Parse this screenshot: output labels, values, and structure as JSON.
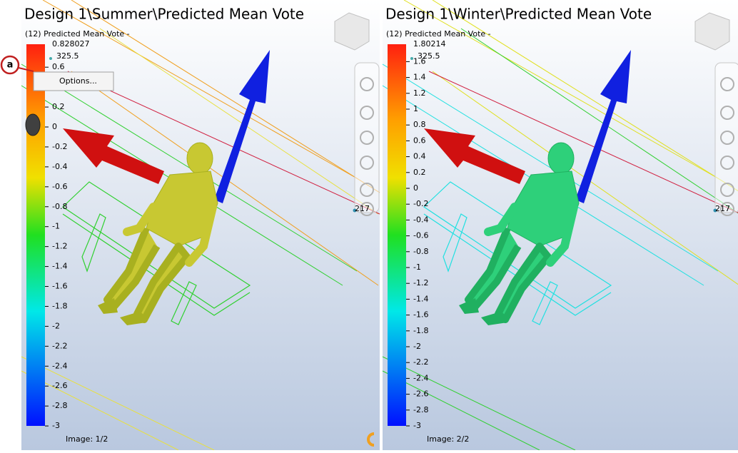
{
  "panels": [
    {
      "title": "Design 1\\Summer\\Predicted Mean Vote",
      "legend_title": "(12) Predicted Mean Vote -",
      "max_label": "0.828027",
      "marker_label": "325.5",
      "ticks": [
        "0.6",
        "0.2",
        "0",
        "-0.2",
        "-0.4",
        "-0.6",
        "-0.8",
        "-1",
        "-1.2",
        "-1.4",
        "-1.6",
        "-1.8",
        "-2",
        "-2.2",
        "-2.4",
        "-2.6",
        "-2.8",
        "-3"
      ],
      "probe_label": "217",
      "footer": "Image: 1/2"
    },
    {
      "title": "Design 1\\Winter\\Predicted Mean Vote",
      "legend_title": "(12) Predicted Mean Vote -",
      "max_label": "1.80214",
      "marker_label": "325.5",
      "ticks": [
        "1.6",
        "1.4",
        "1.2",
        "1",
        "0.8",
        "0.6",
        "0.4",
        "0.2",
        "0",
        "-0.2",
        "-0.4",
        "-0.6",
        "-0.8",
        "-1",
        "-1.2",
        "-1.4",
        "-1.6",
        "-1.8",
        "-2",
        "-2.2",
        "-2.4",
        "-2.6",
        "-2.8",
        "-3"
      ],
      "probe_label": "217",
      "footer": "Image: 2/2"
    }
  ],
  "context_menu": {
    "item": "Options..."
  },
  "callout": "a"
}
